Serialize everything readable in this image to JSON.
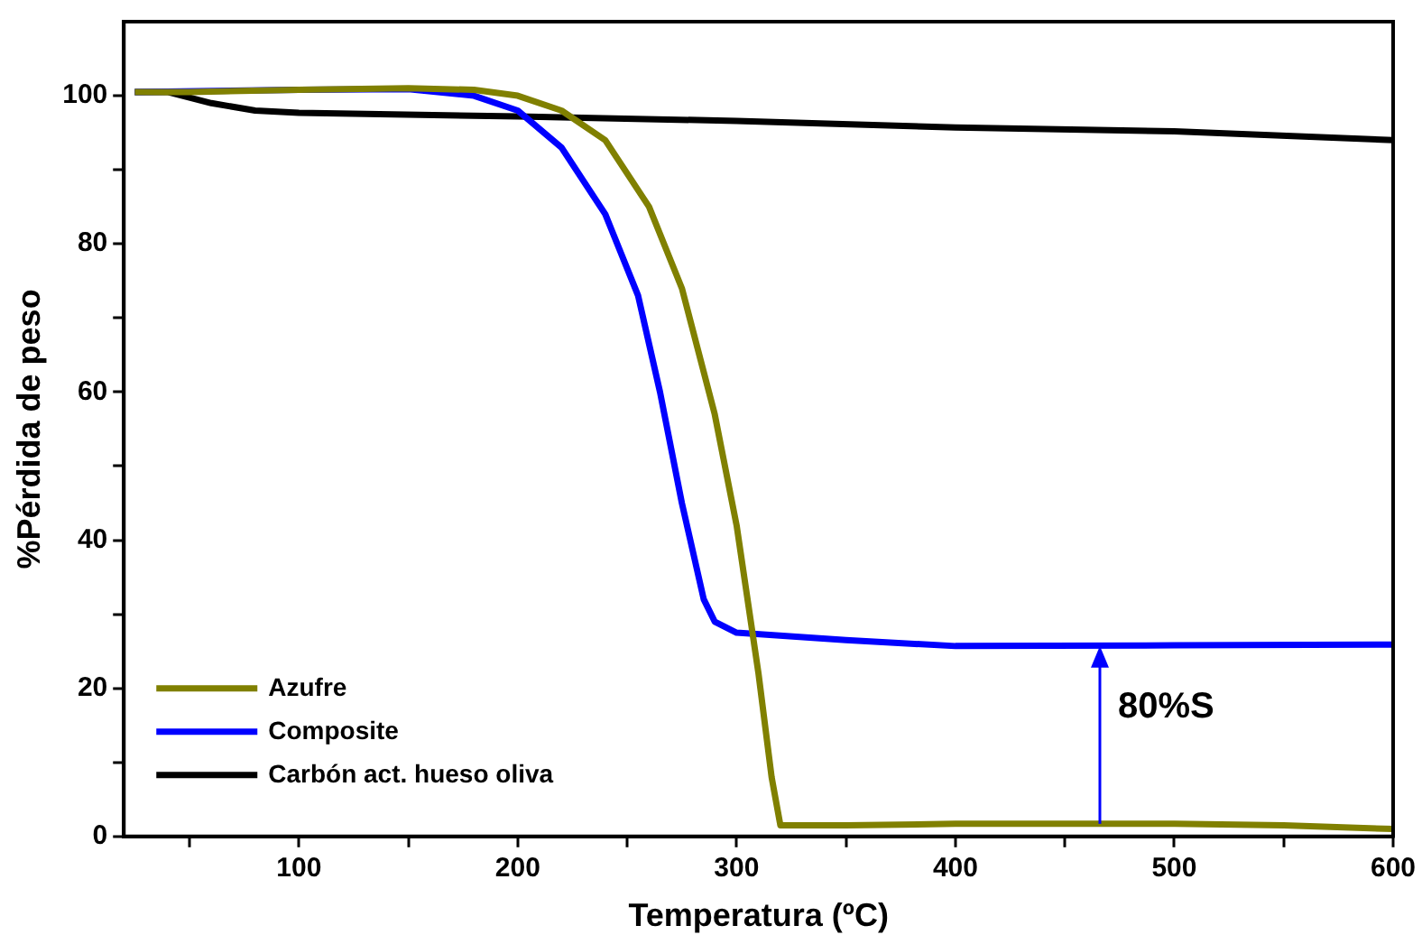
{
  "chart_data": {
    "type": "line",
    "xlabel": "Temperatura (ºC)",
    "ylabel": "%Pérdida de peso",
    "xlim": [
      20,
      600
    ],
    "ylim": [
      0,
      110
    ],
    "xticks": [
      {
        "value": 50,
        "label": null
      },
      100,
      {
        "value": 150,
        "label": null
      },
      200,
      {
        "value": 250,
        "label": null
      },
      300,
      {
        "value": 350,
        "label": null
      },
      400,
      {
        "value": 450,
        "label": null
      },
      500,
      {
        "value": 550,
        "label": null
      },
      600
    ],
    "yticks": [
      0,
      {
        "value": 10,
        "label": null
      },
      20,
      {
        "value": 30,
        "label": null
      },
      40,
      {
        "value": 50,
        "label": null
      },
      60,
      {
        "value": 70,
        "label": null
      },
      80,
      {
        "value": 90,
        "label": null
      },
      100
    ],
    "grid": false,
    "legend": "bottom left",
    "marker": "none",
    "line_style": "solid",
    "annotations": [
      {
        "text": "80%S",
        "x": 466,
        "y": 25.7
      }
    ],
    "series": [
      {
        "name": "Azufre",
        "color": "#808000",
        "x": [
          25,
          50,
          100,
          150,
          180,
          200,
          220,
          240,
          260,
          275,
          290,
          300,
          310,
          316,
          320,
          350,
          400,
          500,
          550,
          600
        ],
        "values": [
          100.5,
          100.5,
          100.8,
          101,
          100.8,
          100,
          98,
          94,
          85,
          74,
          57,
          42,
          22,
          8,
          1.5,
          1.5,
          1.7,
          1.7,
          1.5,
          1
        ]
      },
      {
        "name": "Composite",
        "color": "#0000ff",
        "x": [
          25,
          100,
          150,
          180,
          200,
          220,
          240,
          255,
          265,
          275,
          285,
          290,
          300,
          350,
          400,
          500,
          600
        ],
        "values": [
          100.5,
          100.8,
          100.9,
          100,
          98,
          93,
          84,
          73,
          60,
          45,
          32,
          29,
          27.5,
          26.5,
          25.7,
          25.8,
          25.9
        ]
      },
      {
        "name": "Carbón act. hueso oliva",
        "color": "#000000",
        "x": [
          25,
          40,
          60,
          80,
          100,
          200,
          300,
          400,
          500,
          600
        ],
        "values": [
          100.5,
          100.5,
          99,
          98,
          97.7,
          97.2,
          96.6,
          95.7,
          95.2,
          94
        ]
      }
    ]
  }
}
